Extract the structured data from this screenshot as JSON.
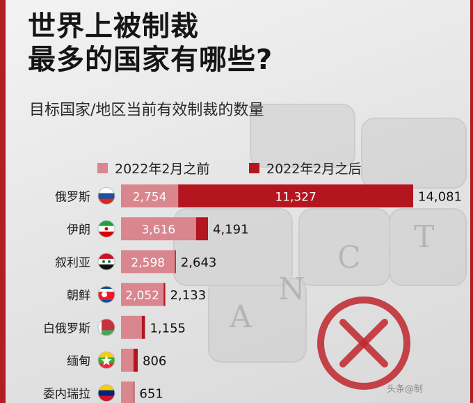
{
  "header": {
    "title_line1": "世界上被制裁",
    "title_line2": "最多的国家有哪些?",
    "subtitle": "目标国家/地区当前有效制裁的数量"
  },
  "legend": {
    "before_label": "2022年2月之前",
    "after_label": "2022年2月之后"
  },
  "colors": {
    "before": "#d9868e",
    "after": "#b3161f",
    "accent": "#b21e23"
  },
  "chart_data": {
    "type": "bar",
    "orientation": "horizontal",
    "stacked": true,
    "categories": [
      "俄罗斯",
      "伊朗",
      "叙利亚",
      "朝鲜",
      "白俄罗斯",
      "缅甸",
      "委内瑞拉"
    ],
    "series": [
      {
        "name": "2022年2月之前",
        "values": [
          2754,
          3616,
          2598,
          2052,
          1000,
          600,
          620
        ]
      },
      {
        "name": "2022年2月之后",
        "values": [
          11327,
          575,
          45,
          81,
          155,
          206,
          31
        ]
      }
    ],
    "totals": [
      14081,
      4191,
      2643,
      2133,
      1155,
      806,
      651
    ],
    "value_labels": {
      "before": [
        "2,754",
        "3,616",
        "2,598",
        "2,052",
        "",
        "",
        ""
      ],
      "after": [
        "11,327",
        "",
        "",
        "",
        "",
        "",
        ""
      ],
      "totals": [
        "14,081",
        "4,191",
        "2,643",
        "2,133",
        "1,155",
        "806",
        "651"
      ]
    },
    "flags": [
      "russia-flag",
      "iran-flag",
      "syria-flag",
      "north-korea-flag",
      "belarus-flag",
      "myanmar-flag",
      "venezuela-flag"
    ],
    "legend_position": "top",
    "grid": false
  },
  "watermark": "头条@制"
}
